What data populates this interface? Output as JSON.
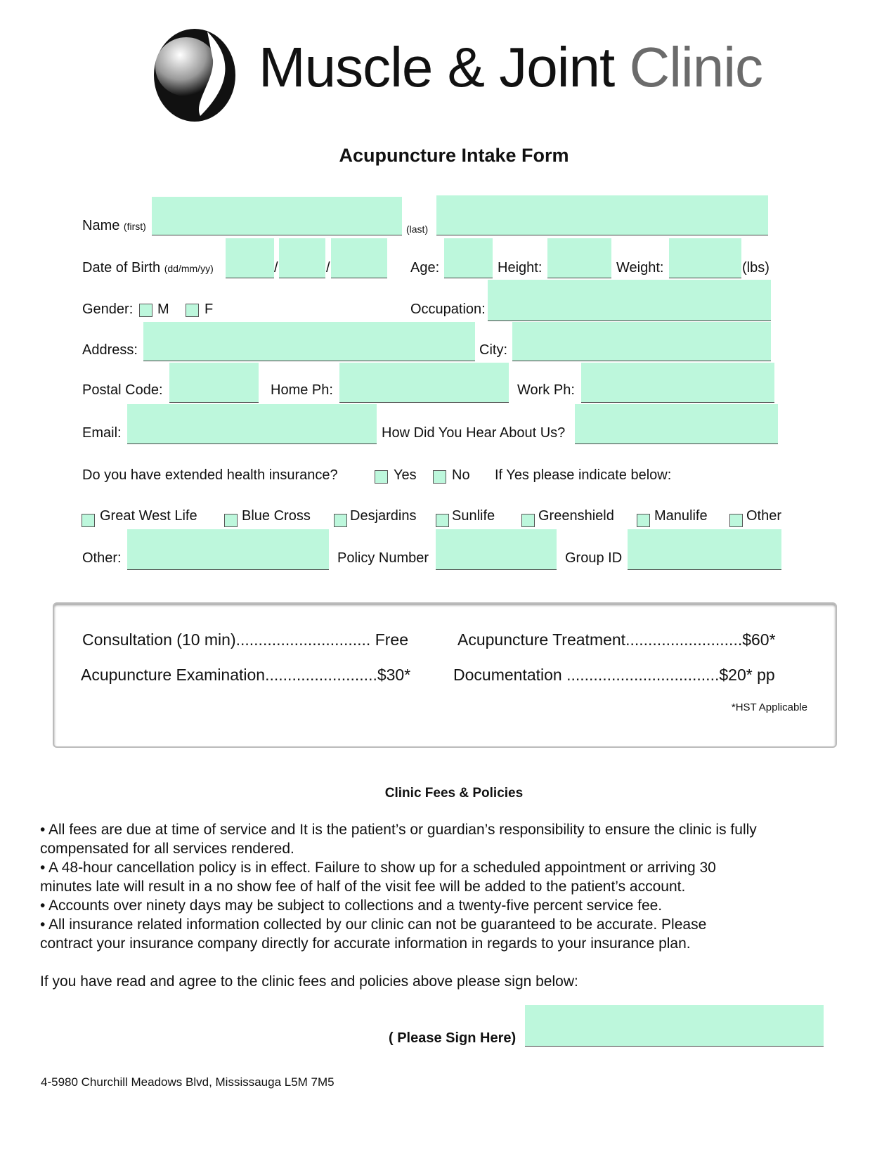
{
  "logo": {
    "part1": "Muscle & Joint",
    "part2": "Clinic",
    "text_color": "#111111",
    "accent_gray": "#6b6b6b"
  },
  "title": "Acupuncture Intake Form",
  "field_color": "#bdf7dc",
  "form": {
    "name_label": "Name",
    "first_hint": "(first)",
    "last_hint": "(last)",
    "dob_label": "Date of Birth",
    "dob_hint": "(dd/mm/yy)",
    "slash": "/",
    "age_label": "Age:",
    "height_label": "Height:",
    "weight_label": "Weight:",
    "weight_unit": "(lbs)",
    "gender_label": "Gender:",
    "gender_m": "M",
    "gender_f": "F",
    "occupation_label": "Occupation:",
    "address_label": "Address:",
    "city_label": "City:",
    "postal_label": "Postal Code:",
    "home_ph_label": "Home Ph:",
    "work_ph_label": "Work Ph:",
    "email_label": "Email:",
    "hear_label": "How Did You Hear About Us?",
    "insurance_question": "Do you have extended health insurance?",
    "yes": "Yes",
    "no": "No",
    "if_yes": "If Yes please indicate below:",
    "providers": [
      "Great West Life",
      "Blue Cross",
      "Desjardins",
      "Sunlife",
      "Greenshield",
      "Manulife",
      "Other"
    ],
    "other_label": "Other:",
    "policy_label": "Policy Number",
    "group_label": "Group ID"
  },
  "fees": {
    "consultation": "Consultation (10 min).............................. Free",
    "examination": "Acupuncture Examination.........................$30*",
    "treatment": "Acupuncture Treatment..........................$60*",
    "documentation": "Documentation ..................................$20* pp",
    "note": "*HST Applicable"
  },
  "policies": {
    "heading": "Clinic Fees & Policies",
    "lines": [
      "•  All fees are due at time of service and It is the patient’s or guardian’s responsibility to ensure the clinic is fully",
      "compensated for all services rendered.",
      "•  A 48-hour cancellation policy is in effect. Failure to show up for a scheduled appointment or arriving 30",
      "minutes late will result in a no show fee of half of the visit fee will be added to the patient’s account.",
      "•  Accounts over ninety days may be subject to collections and a twenty-five percent service fee.",
      "•  All insurance related information collected by our clinic can not be guaranteed to be accurate. Please",
      "contract your insurance company directly for accurate information in regards to your insurance plan."
    ],
    "agree": "If you have read and agree to the clinic fees and policies above please sign below:",
    "sign_label": "( Please Sign Here)"
  },
  "footer_address": "4-5980 Churchill Meadows Blvd, Mississauga L5M 7M5"
}
